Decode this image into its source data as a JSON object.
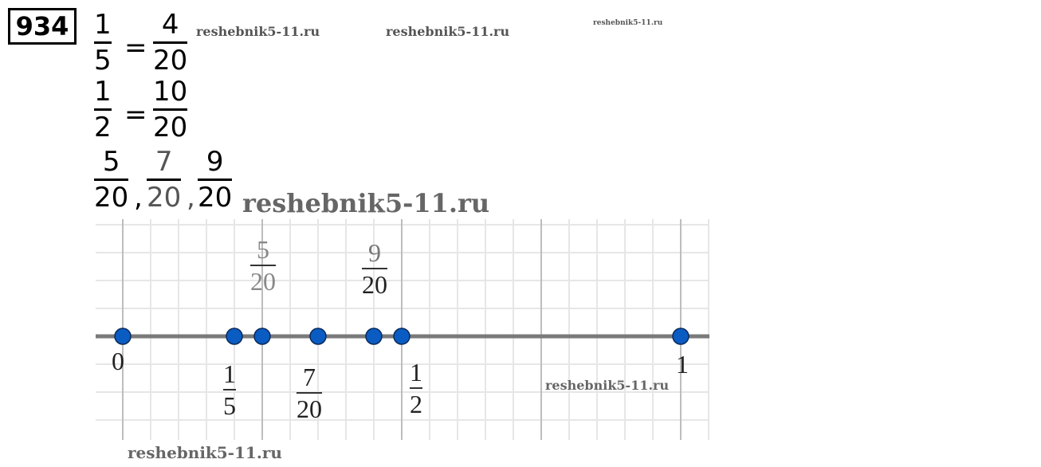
{
  "problem_number": "934",
  "equations": [
    {
      "left": {
        "num": "1",
        "den": "5"
      },
      "op": "=",
      "right": {
        "num": "4",
        "den": "20"
      }
    },
    {
      "left": {
        "num": "1",
        "den": "2"
      },
      "op": "=",
      "right": {
        "num": "10",
        "den": "20"
      }
    }
  ],
  "fraction_list": [
    {
      "num": "5",
      "den": "20"
    },
    {
      "num": "7",
      "den": "20"
    },
    {
      "num": "9",
      "den": "20"
    }
  ],
  "separator": ",",
  "watermark": "reshebnik5-11.ru",
  "number_line": {
    "range": [
      0,
      1
    ],
    "grid_step": 0.05,
    "major_step": 0.25,
    "points": [
      0,
      0.2,
      0.25,
      0.35,
      0.45,
      0.5,
      1
    ],
    "point_color": "#0a5cc2",
    "labels_below": [
      {
        "text": "0"
      },
      {
        "num": "1",
        "den": "5"
      },
      {
        "num": "7",
        "den": "20"
      },
      {
        "num": "1",
        "den": "2"
      },
      {
        "text": "1"
      }
    ],
    "labels_above": [
      {
        "num": "5",
        "den": "20"
      },
      {
        "num": "9",
        "den": "20"
      }
    ]
  }
}
